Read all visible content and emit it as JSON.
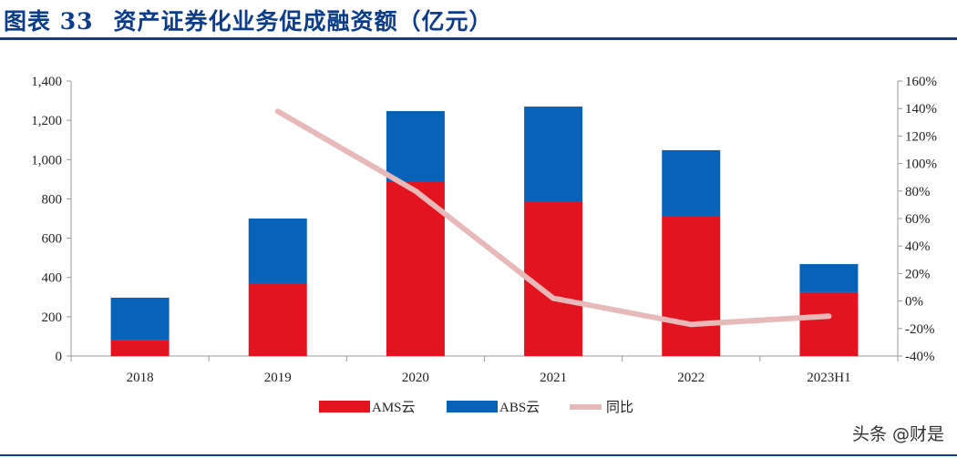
{
  "title": {
    "label": "图表 33",
    "text": "资产证券化业务促成融资额（亿元）"
  },
  "watermark": "头条 @财是",
  "chart_data": {
    "type": "bar",
    "stacked": true,
    "title": "资产证券化业务促成融资额（亿元）",
    "categories": [
      "2018",
      "2019",
      "2020",
      "2021",
      "2022",
      "2023H1"
    ],
    "series": [
      {
        "name": "AMS云",
        "color": "#e3141f",
        "values": [
          83,
          371,
          890,
          788,
          714,
          325
        ]
      },
      {
        "name": "ABS云",
        "color": "#0862b8",
        "values": [
          214,
          329,
          357,
          482,
          334,
          143
        ]
      }
    ],
    "line_series": {
      "name": "同比",
      "color": "#e8b9b9",
      "axis": "right",
      "values": [
        null,
        138,
        80,
        2,
        -17,
        -11
      ]
    },
    "ylim": [
      0,
      1400
    ],
    "yticks": [
      "0",
      "200",
      "400",
      "600",
      "800",
      "1,000",
      "1,200",
      "1,400"
    ],
    "y2lim": [
      -40,
      160
    ],
    "y2ticks": [
      "-40%",
      "-20%",
      "0%",
      "20%",
      "40%",
      "60%",
      "80%",
      "100%",
      "120%",
      "140%",
      "160%"
    ],
    "legend": "bottom",
    "grid": false
  }
}
